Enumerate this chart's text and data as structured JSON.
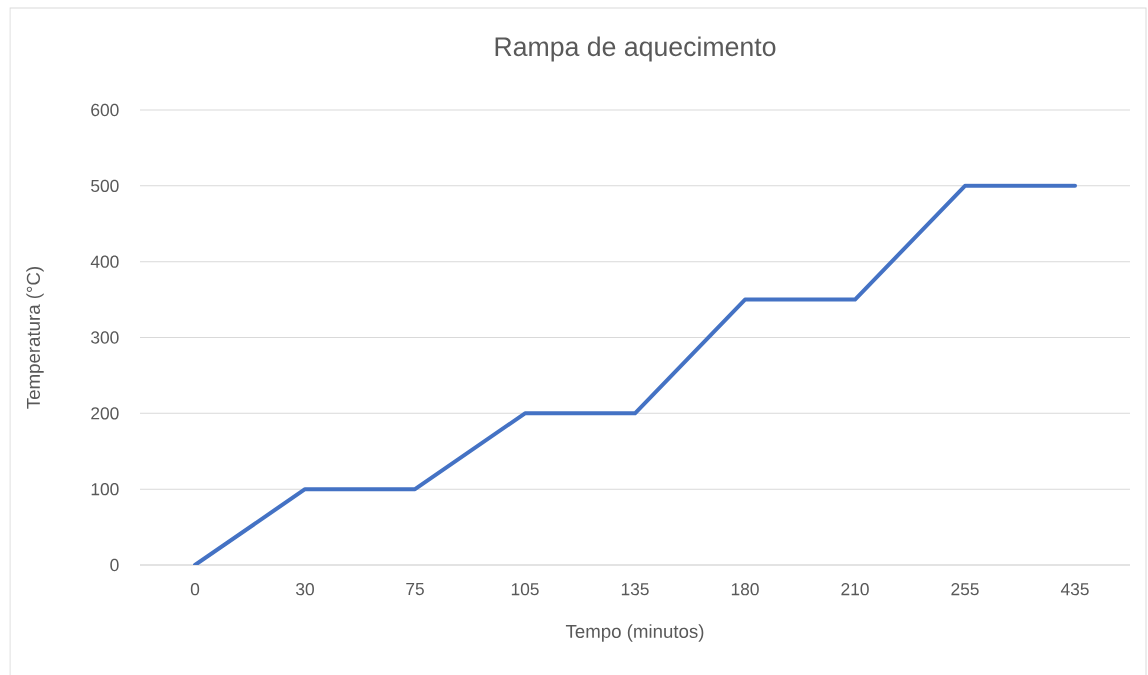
{
  "chart_data": {
    "type": "line",
    "title": "Rampa de aquecimento",
    "xlabel": "Tempo (minutos)",
    "ylabel": "Temperatura (°C)",
    "categories": [
      "0",
      "30",
      "75",
      "105",
      "135",
      "180",
      "210",
      "255",
      "435"
    ],
    "values": [
      0,
      100,
      100,
      200,
      200,
      350,
      350,
      500,
      500
    ],
    "color": "#4472c4",
    "ylim": [
      0,
      600
    ],
    "yticks": [
      0,
      100,
      200,
      300,
      400,
      500,
      600
    ],
    "grid": "y"
  }
}
